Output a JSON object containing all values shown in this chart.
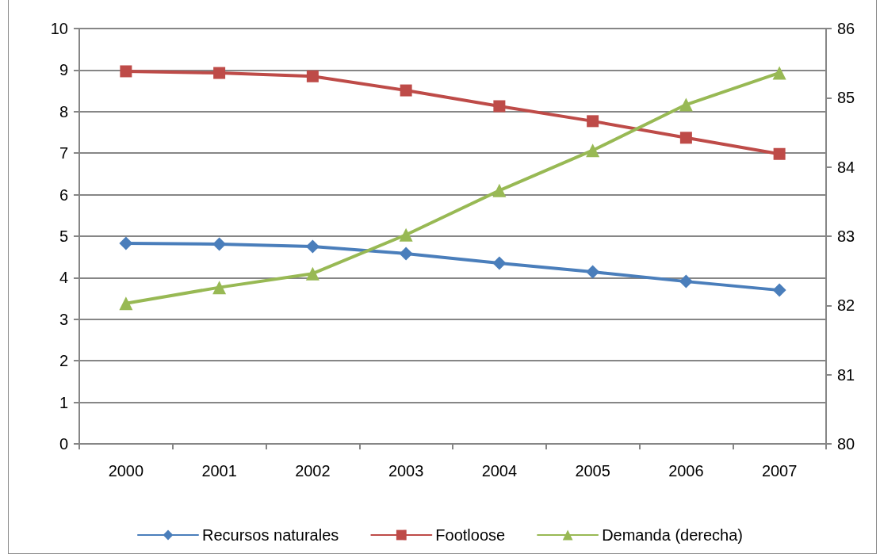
{
  "chart_data": {
    "type": "line",
    "categories": [
      "2000",
      "2001",
      "2002",
      "2003",
      "2004",
      "2005",
      "2006",
      "2007"
    ],
    "series": [
      {
        "name": "Recursos naturales",
        "color": "#4a7ebb",
        "marker": "diamond",
        "values": [
          4.83,
          4.81,
          4.75,
          4.58,
          4.35,
          4.14,
          3.91,
          3.7
        ]
      },
      {
        "name": "Footloose",
        "color": "#be4b48",
        "marker": "square",
        "values": [
          8.97,
          8.93,
          8.85,
          8.51,
          8.13,
          7.77,
          7.37,
          6.98
        ]
      },
      {
        "name": "Demanda (derecha)",
        "color": "#98b954",
        "marker": "triangle",
        "axis": "y2",
        "values": [
          82.03,
          82.26,
          82.46,
          83.02,
          83.66,
          84.24,
          84.9,
          85.36
        ]
      }
    ],
    "ylim": [
      0,
      10
    ],
    "yticks": [
      0,
      1,
      2,
      3,
      4,
      5,
      6,
      7,
      8,
      9,
      10
    ],
    "y2lim": [
      80,
      86
    ],
    "y2ticks": [
      80,
      81,
      82,
      83,
      84,
      85,
      86
    ],
    "grid": "y",
    "legend": "bottom",
    "line_style": "solid"
  }
}
